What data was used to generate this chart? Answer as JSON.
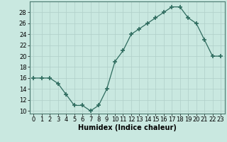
{
  "x": [
    0,
    1,
    2,
    3,
    4,
    5,
    6,
    7,
    8,
    9,
    10,
    11,
    12,
    13,
    14,
    15,
    16,
    17,
    18,
    19,
    20,
    21,
    22,
    23
  ],
  "y": [
    16,
    16,
    16,
    15,
    13,
    11,
    11,
    10,
    11,
    14,
    19,
    21,
    24,
    25,
    26,
    27,
    28,
    29,
    29,
    27,
    26,
    23,
    20,
    20
  ],
  "line_color": "#2e6b5e",
  "marker": "+",
  "marker_size": 4,
  "marker_linewidth": 1.2,
  "background_color": "#c9e8e0",
  "grid_color": "#b0cfc8",
  "xlabel": "Humidex (Indice chaleur)",
  "xlim": [
    -0.5,
    23.5
  ],
  "ylim": [
    9.5,
    30
  ],
  "yticks": [
    10,
    12,
    14,
    16,
    18,
    20,
    22,
    24,
    26,
    28
  ],
  "xtick_labels": [
    "0",
    "1",
    "2",
    "3",
    "4",
    "5",
    "6",
    "7",
    "8",
    "9",
    "10",
    "11",
    "12",
    "13",
    "14",
    "15",
    "16",
    "17",
    "18",
    "19",
    "20",
    "21",
    "22",
    "23"
  ],
  "xlabel_fontsize": 7,
  "tick_fontsize": 6,
  "linewidth": 0.9
}
